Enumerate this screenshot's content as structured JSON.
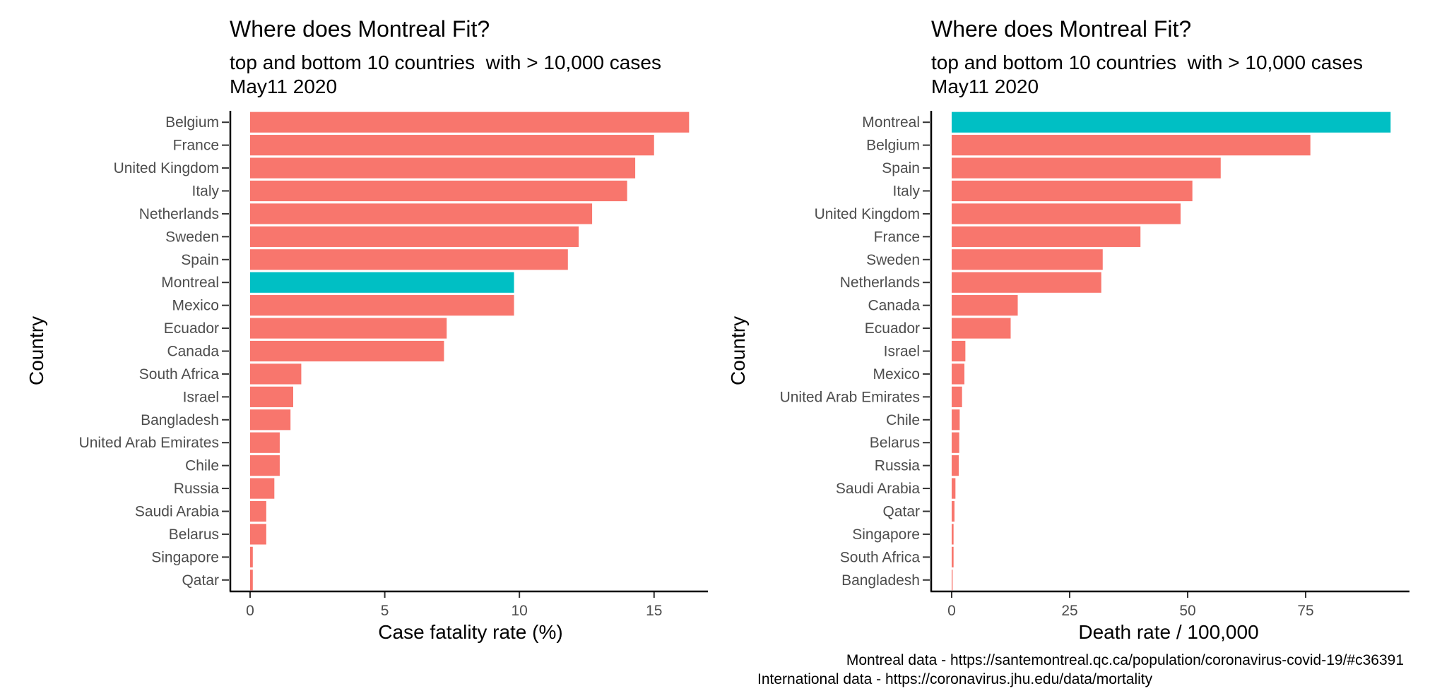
{
  "chart_data": [
    {
      "type": "bar",
      "orientation": "horizontal",
      "title": "Where does Montreal Fit?",
      "subtitle_line1": "top and bottom 10 countries  with > 10,000 cases",
      "subtitle_line2": "May11 2020",
      "xlabel": "Case fatality rate (%)",
      "ylabel": "Country",
      "xlim": [
        0,
        17
      ],
      "xticks": [
        0,
        5,
        10,
        15
      ],
      "grid": false,
      "highlight": "Montreal",
      "categories": [
        "Belgium",
        "France",
        "United Kingdom",
        "Italy",
        "Netherlands",
        "Sweden",
        "Spain",
        "Montreal",
        "Mexico",
        "Ecuador",
        "Canada",
        "South Africa",
        "Israel",
        "Bangladesh",
        "United Arab Emirates",
        "Chile",
        "Russia",
        "Saudi Arabia",
        "Belarus",
        "Singapore",
        "Qatar"
      ],
      "values": [
        16.3,
        15.0,
        14.3,
        14.0,
        12.7,
        12.2,
        11.8,
        9.8,
        9.8,
        7.3,
        7.2,
        1.9,
        1.6,
        1.5,
        1.1,
        1.1,
        0.9,
        0.6,
        0.6,
        0.1,
        0.1
      ]
    },
    {
      "type": "bar",
      "orientation": "horizontal",
      "title": "Where does Montreal Fit?",
      "subtitle_line1": "top and bottom 10 countries  with > 10,000 cases",
      "subtitle_line2": "May11 2020",
      "xlabel": "Death rate / 100,000",
      "ylabel": "Country",
      "xlim": [
        0,
        97
      ],
      "xticks": [
        0,
        25,
        50,
        75
      ],
      "grid": false,
      "highlight": "Montreal",
      "categories": [
        "Montreal",
        "Belgium",
        "Spain",
        "Italy",
        "United Kingdom",
        "France",
        "Sweden",
        "Netherlands",
        "Canada",
        "Ecuador",
        "Israel",
        "Mexico",
        "United Arab Emirates",
        "Chile",
        "Belarus",
        "Russia",
        "Saudi Arabia",
        "Qatar",
        "Singapore",
        "South Africa",
        "Bangladesh"
      ],
      "values": [
        93,
        76,
        57,
        51,
        48.5,
        40,
        32,
        31.7,
        14,
        12.5,
        2.9,
        2.7,
        2.2,
        1.7,
        1.6,
        1.5,
        0.8,
        0.6,
        0.4,
        0.4,
        0.2
      ]
    }
  ],
  "colors": {
    "bar": "#f8766d",
    "highlight": "#00bfc4",
    "axis": "#000000",
    "label": "#4d4d4d"
  },
  "caption": {
    "line1": "Montreal data - https://santemontreal.qc.ca/population/coronavirus-covid-19/#c36391",
    "line2": "International data - https://coronavirus.jhu.edu/data/mortality"
  }
}
